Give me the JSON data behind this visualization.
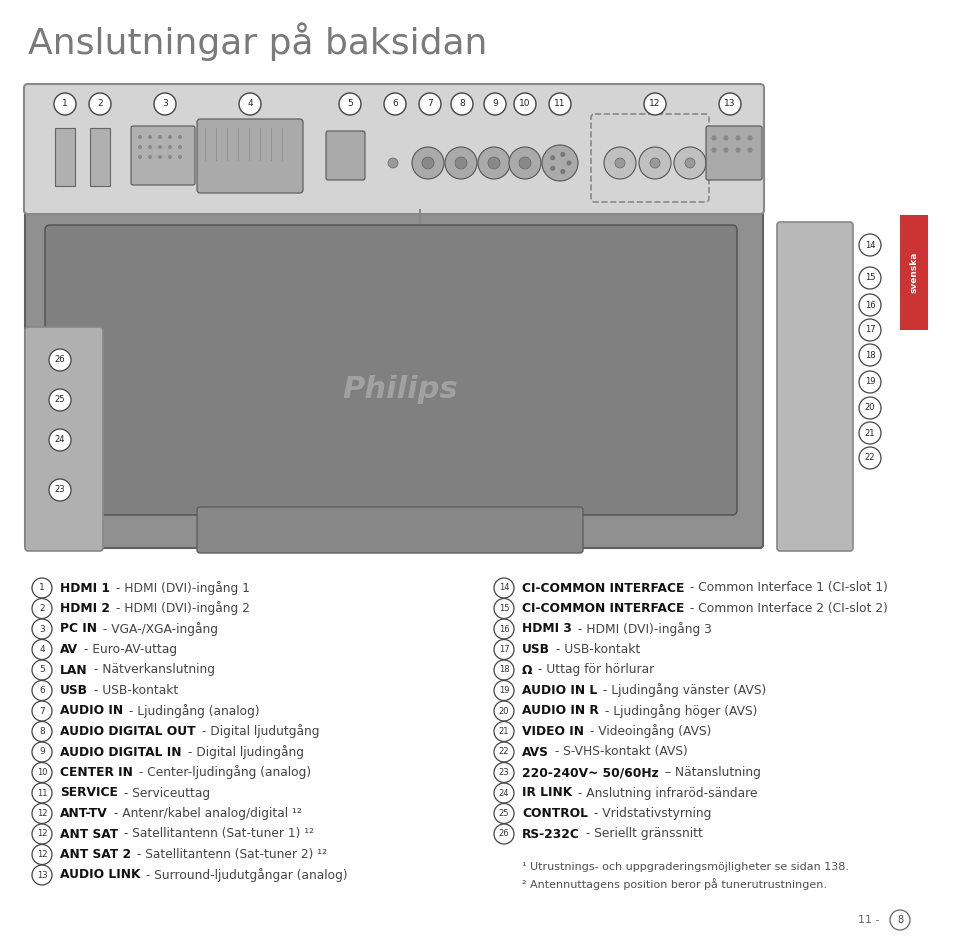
{
  "title": "Anslutningar på baksidan",
  "title_color": "#7a7a7a",
  "title_fontsize": 26,
  "background_color": "#ffffff",
  "text_color": "#444444",
  "bold_color": "#111111",
  "circle_edge_color": "#444444",
  "item_fontsize": 8.8,
  "footnote_fontsize": 8.0,
  "left_items": [
    {
      "num": "1",
      "bold": "HDMI 1",
      "rest": " - HDMI (DVI)-ingång 1"
    },
    {
      "num": "2",
      "bold": "HDMI 2",
      "rest": " - HDMI (DVI)-ingång 2"
    },
    {
      "num": "3",
      "bold": "PC IN",
      "rest": " - VGA-/XGA-ingång"
    },
    {
      "num": "4",
      "bold": "AV",
      "rest": " - Euro-AV-uttag"
    },
    {
      "num": "5",
      "bold": "LAN",
      "rest": " - Nätverkanslutning"
    },
    {
      "num": "6",
      "bold": "USB",
      "rest": " - USB-kontakt"
    },
    {
      "num": "7",
      "bold": "AUDIO IN",
      "rest": " - Ljudingång (analog)"
    },
    {
      "num": "8",
      "bold": "AUDIO DIGITAL OUT",
      "rest": " - Digital ljudutgång"
    },
    {
      "num": "9",
      "bold": "AUDIO DIGITAL IN",
      "rest": " - Digital ljudingång"
    },
    {
      "num": "10",
      "bold": "CENTER IN",
      "rest": " - Center-ljudingång (analog)"
    },
    {
      "num": "11",
      "bold": "SERVICE",
      "rest": " - Serviceuttag"
    },
    {
      "num": "12",
      "bold": "ANT-TV",
      "rest": " - Antenr/kabel analog/digital ¹²"
    },
    {
      "num": "12",
      "bold": "ANT SAT",
      "rest": " - Satellitantenn (Sat-tuner 1) ¹²"
    },
    {
      "num": "12",
      "bold": "ANT SAT 2",
      "rest": " - Satellitantenn (Sat-tuner 2) ¹²"
    },
    {
      "num": "13",
      "bold": "AUDIO LINK",
      "rest": " - Surround-ljudutgångar (analog)"
    }
  ],
  "right_items": [
    {
      "num": "14",
      "bold": "CI-COMMON INTERFACE",
      "rest": " - Common Interface 1 (CI-slot 1)"
    },
    {
      "num": "15",
      "bold": "CI-COMMON INTERFACE",
      "rest": " - Common Interface 2 (CI-slot 2)"
    },
    {
      "num": "16",
      "bold": "HDMI 3",
      "rest": " - HDMI (DVI)-ingång 3"
    },
    {
      "num": "17",
      "bold": "USB",
      "rest": " - USB-kontakt"
    },
    {
      "num": "18",
      "bold": "Ω",
      "rest": " - Uttag för hörlurar"
    },
    {
      "num": "19",
      "bold": "AUDIO IN L",
      "rest": " - Ljudingång vänster (AVS)"
    },
    {
      "num": "20",
      "bold": "AUDIO IN R",
      "rest": " - Ljudingång höger (AVS)"
    },
    {
      "num": "21",
      "bold": "VIDEO IN",
      "rest": " - Videoingång (AVS)"
    },
    {
      "num": "22",
      "bold": "AVS",
      "rest": " - S-VHS-kontakt (AVS)"
    },
    {
      "num": "23",
      "bold": "220-240V~ 50/60Hz",
      "rest": " – Nätanslutning"
    },
    {
      "num": "24",
      "bold": "IR LINK",
      "rest": " - Anslutning infraröd-sändare"
    },
    {
      "num": "25",
      "bold": "CONTROL",
      "rest": " - Vridstativstyrning"
    },
    {
      "num": "26",
      "bold": "RS-232C",
      "rest": " - Seriellt gränssnitt"
    }
  ],
  "footnote1": "¹ Utrustnings- och uppgraderingsmöjligheter se sidan 138.",
  "footnote2": "² Antennuttagens position beror på tunerutrustningen.",
  "page_label": "11 -",
  "page_num": "8",
  "svenska_label": "svenska"
}
